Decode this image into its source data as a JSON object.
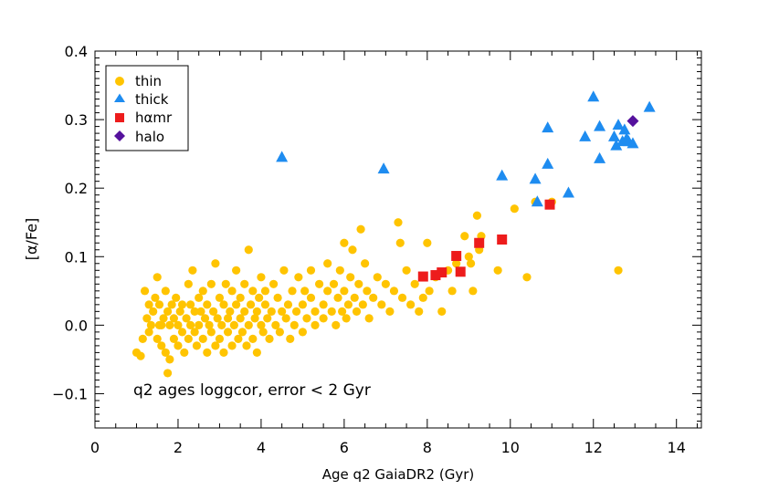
{
  "chart_data": {
    "type": "scatter",
    "title": "",
    "xlabel": "Age q2 GaiaDR2 (Gyr)",
    "ylabel": "[α/Fe]",
    "xlim": [
      0,
      14.6
    ],
    "ylim": [
      -0.15,
      0.4
    ],
    "x_ticks": [
      0,
      2,
      4,
      6,
      8,
      10,
      12,
      14
    ],
    "x_tick_labels": [
      "0",
      "2",
      "4",
      "6",
      "8",
      "10",
      "12",
      "14"
    ],
    "y_ticks": [
      -0.1,
      0.0,
      0.1,
      0.2,
      0.3,
      0.4
    ],
    "y_tick_labels": [
      "−0.1",
      "0.0",
      "0.1",
      "0.2",
      "0.3",
      "0.4"
    ],
    "annotation": "q2 ages loggcor, error < 2 Gyr",
    "legend_position": "top-left",
    "series": [
      {
        "name": "thin",
        "marker": "circle",
        "color": "#FFC400",
        "points": [
          [
            1.0,
            -0.04
          ],
          [
            1.1,
            -0.045
          ],
          [
            1.15,
            -0.02
          ],
          [
            1.2,
            0.05
          ],
          [
            1.25,
            0.01
          ],
          [
            1.3,
            0.03
          ],
          [
            1.3,
            -0.01
          ],
          [
            1.35,
            0.0
          ],
          [
            1.4,
            0.02
          ],
          [
            1.45,
            0.04
          ],
          [
            1.5,
            0.07
          ],
          [
            1.5,
            -0.02
          ],
          [
            1.55,
            0.03
          ],
          [
            1.55,
            0.0
          ],
          [
            1.6,
            -0.03
          ],
          [
            1.6,
            0.0
          ],
          [
            1.65,
            0.01
          ],
          [
            1.7,
            0.05
          ],
          [
            1.7,
            -0.04
          ],
          [
            1.75,
            0.02
          ],
          [
            1.75,
            -0.07
          ],
          [
            1.8,
            0.0
          ],
          [
            1.8,
            -0.05
          ],
          [
            1.85,
            0.03
          ],
          [
            1.9,
            -0.02
          ],
          [
            1.9,
            0.01
          ],
          [
            1.95,
            0.04
          ],
          [
            2.0,
            -0.03
          ],
          [
            2.0,
            0.0
          ],
          [
            2.05,
            0.02
          ],
          [
            2.1,
            -0.01
          ],
          [
            2.1,
            0.03
          ],
          [
            2.15,
            -0.04
          ],
          [
            2.2,
            0.01
          ],
          [
            2.25,
            0.06
          ],
          [
            2.25,
            -0.02
          ],
          [
            2.3,
            0.0
          ],
          [
            2.3,
            0.03
          ],
          [
            2.35,
            0.08
          ],
          [
            2.4,
            -0.01
          ],
          [
            2.4,
            0.02
          ],
          [
            2.45,
            -0.03
          ],
          [
            2.5,
            0.04
          ],
          [
            2.5,
            0.0
          ],
          [
            2.55,
            0.02
          ],
          [
            2.6,
            -0.02
          ],
          [
            2.6,
            0.05
          ],
          [
            2.65,
            0.01
          ],
          [
            2.7,
            -0.04
          ],
          [
            2.7,
            0.03
          ],
          [
            2.75,
            0.0
          ],
          [
            2.8,
            0.06
          ],
          [
            2.8,
            -0.01
          ],
          [
            2.85,
            0.02
          ],
          [
            2.9,
            0.09
          ],
          [
            2.9,
            -0.03
          ],
          [
            2.95,
            0.01
          ],
          [
            3.0,
            0.04
          ],
          [
            3.0,
            -0.02
          ],
          [
            3.05,
            0.0
          ],
          [
            3.1,
            0.03
          ],
          [
            3.1,
            -0.04
          ],
          [
            3.15,
            0.06
          ],
          [
            3.2,
            0.01
          ],
          [
            3.2,
            -0.01
          ],
          [
            3.25,
            0.02
          ],
          [
            3.3,
            0.05
          ],
          [
            3.3,
            -0.03
          ],
          [
            3.35,
            0.0
          ],
          [
            3.4,
            0.03
          ],
          [
            3.4,
            0.08
          ],
          [
            3.45,
            -0.02
          ],
          [
            3.5,
            0.01
          ],
          [
            3.5,
            0.04
          ],
          [
            3.55,
            -0.01
          ],
          [
            3.6,
            0.02
          ],
          [
            3.6,
            0.06
          ],
          [
            3.65,
            -0.03
          ],
          [
            3.7,
            0.0
          ],
          [
            3.7,
            0.11
          ],
          [
            3.75,
            0.03
          ],
          [
            3.8,
            -0.02
          ],
          [
            3.8,
            0.05
          ],
          [
            3.85,
            0.01
          ],
          [
            3.9,
            0.02
          ],
          [
            3.9,
            -0.04
          ],
          [
            3.95,
            0.04
          ],
          [
            4.0,
            0.0
          ],
          [
            4.0,
            0.07
          ],
          [
            4.05,
            -0.01
          ],
          [
            4.1,
            0.03
          ],
          [
            4.1,
            0.05
          ],
          [
            4.15,
            0.01
          ],
          [
            4.2,
            -0.02
          ],
          [
            4.25,
            0.02
          ],
          [
            4.3,
            0.06
          ],
          [
            4.35,
            0.0
          ],
          [
            4.4,
            0.04
          ],
          [
            4.45,
            -0.01
          ],
          [
            4.5,
            0.02
          ],
          [
            4.55,
            0.08
          ],
          [
            4.6,
            0.01
          ],
          [
            4.65,
            0.03
          ],
          [
            4.7,
            -0.02
          ],
          [
            4.75,
            0.05
          ],
          [
            4.8,
            0.0
          ],
          [
            4.85,
            0.02
          ],
          [
            4.9,
            0.07
          ],
          [
            5.0,
            0.03
          ],
          [
            5.0,
            -0.01
          ],
          [
            5.05,
            0.05
          ],
          [
            5.1,
            0.01
          ],
          [
            5.2,
            0.04
          ],
          [
            5.2,
            0.08
          ],
          [
            5.3,
            0.02
          ],
          [
            5.3,
            0.0
          ],
          [
            5.4,
            0.06
          ],
          [
            5.5,
            0.03
          ],
          [
            5.5,
            0.01
          ],
          [
            5.6,
            0.05
          ],
          [
            5.6,
            0.09
          ],
          [
            5.7,
            0.02
          ],
          [
            5.75,
            0.06
          ],
          [
            5.8,
            0.0
          ],
          [
            5.85,
            0.04
          ],
          [
            5.9,
            0.08
          ],
          [
            5.95,
            0.02
          ],
          [
            6.0,
            0.05
          ],
          [
            6.0,
            0.12
          ],
          [
            6.05,
            0.01
          ],
          [
            6.1,
            0.03
          ],
          [
            6.15,
            0.07
          ],
          [
            6.2,
            0.11
          ],
          [
            6.25,
            0.04
          ],
          [
            6.3,
            0.02
          ],
          [
            6.35,
            0.06
          ],
          [
            6.4,
            0.14
          ],
          [
            6.45,
            0.03
          ],
          [
            6.5,
            0.09
          ],
          [
            6.55,
            0.05
          ],
          [
            6.6,
            0.01
          ],
          [
            6.7,
            0.04
          ],
          [
            6.8,
            0.07
          ],
          [
            6.9,
            0.03
          ],
          [
            7.0,
            0.06
          ],
          [
            7.1,
            0.02
          ],
          [
            7.2,
            0.05
          ],
          [
            7.3,
            0.15
          ],
          [
            7.35,
            0.12
          ],
          [
            7.4,
            0.04
          ],
          [
            7.5,
            0.08
          ],
          [
            7.6,
            0.03
          ],
          [
            7.7,
            0.06
          ],
          [
            7.8,
            0.02
          ],
          [
            7.9,
            0.04
          ],
          [
            8.0,
            0.12
          ],
          [
            8.05,
            0.05
          ],
          [
            8.2,
            0.07
          ],
          [
            8.35,
            0.02
          ],
          [
            8.5,
            0.08
          ],
          [
            8.6,
            0.05
          ],
          [
            8.7,
            0.09
          ],
          [
            8.9,
            0.13
          ],
          [
            9.0,
            0.1
          ],
          [
            9.05,
            0.09
          ],
          [
            9.1,
            0.05
          ],
          [
            9.2,
            0.16
          ],
          [
            9.25,
            0.11
          ],
          [
            9.3,
            0.13
          ],
          [
            9.7,
            0.08
          ],
          [
            10.1,
            0.17
          ],
          [
            10.4,
            0.07
          ],
          [
            10.6,
            0.18
          ],
          [
            11.0,
            0.18
          ],
          [
            12.6,
            0.08
          ]
        ]
      },
      {
        "name": "thick",
        "marker": "triangle",
        "color": "#1E8CF0",
        "points": [
          [
            4.5,
            0.245
          ],
          [
            6.95,
            0.228
          ],
          [
            9.8,
            0.218
          ],
          [
            10.6,
            0.213
          ],
          [
            10.65,
            0.18
          ],
          [
            10.9,
            0.235
          ],
          [
            10.9,
            0.288
          ],
          [
            11.4,
            0.193
          ],
          [
            11.8,
            0.275
          ],
          [
            12.0,
            0.333
          ],
          [
            12.15,
            0.29
          ],
          [
            12.15,
            0.243
          ],
          [
            12.5,
            0.275
          ],
          [
            12.55,
            0.262
          ],
          [
            12.6,
            0.292
          ],
          [
            12.7,
            0.268
          ],
          [
            12.75,
            0.285
          ],
          [
            12.8,
            0.272
          ],
          [
            12.85,
            0.268
          ],
          [
            12.95,
            0.265
          ],
          [
            13.35,
            0.318
          ]
        ]
      },
      {
        "name": "hαmr",
        "marker": "square",
        "color": "#ED1C1C",
        "points": [
          [
            7.9,
            0.071
          ],
          [
            8.2,
            0.073
          ],
          [
            8.35,
            0.077
          ],
          [
            8.7,
            0.101
          ],
          [
            8.8,
            0.078
          ],
          [
            9.25,
            0.12
          ],
          [
            9.8,
            0.125
          ],
          [
            10.95,
            0.176
          ]
        ]
      },
      {
        "name": "halo",
        "marker": "diamond",
        "color": "#55119D",
        "points": [
          [
            12.95,
            0.298
          ]
        ]
      }
    ]
  }
}
